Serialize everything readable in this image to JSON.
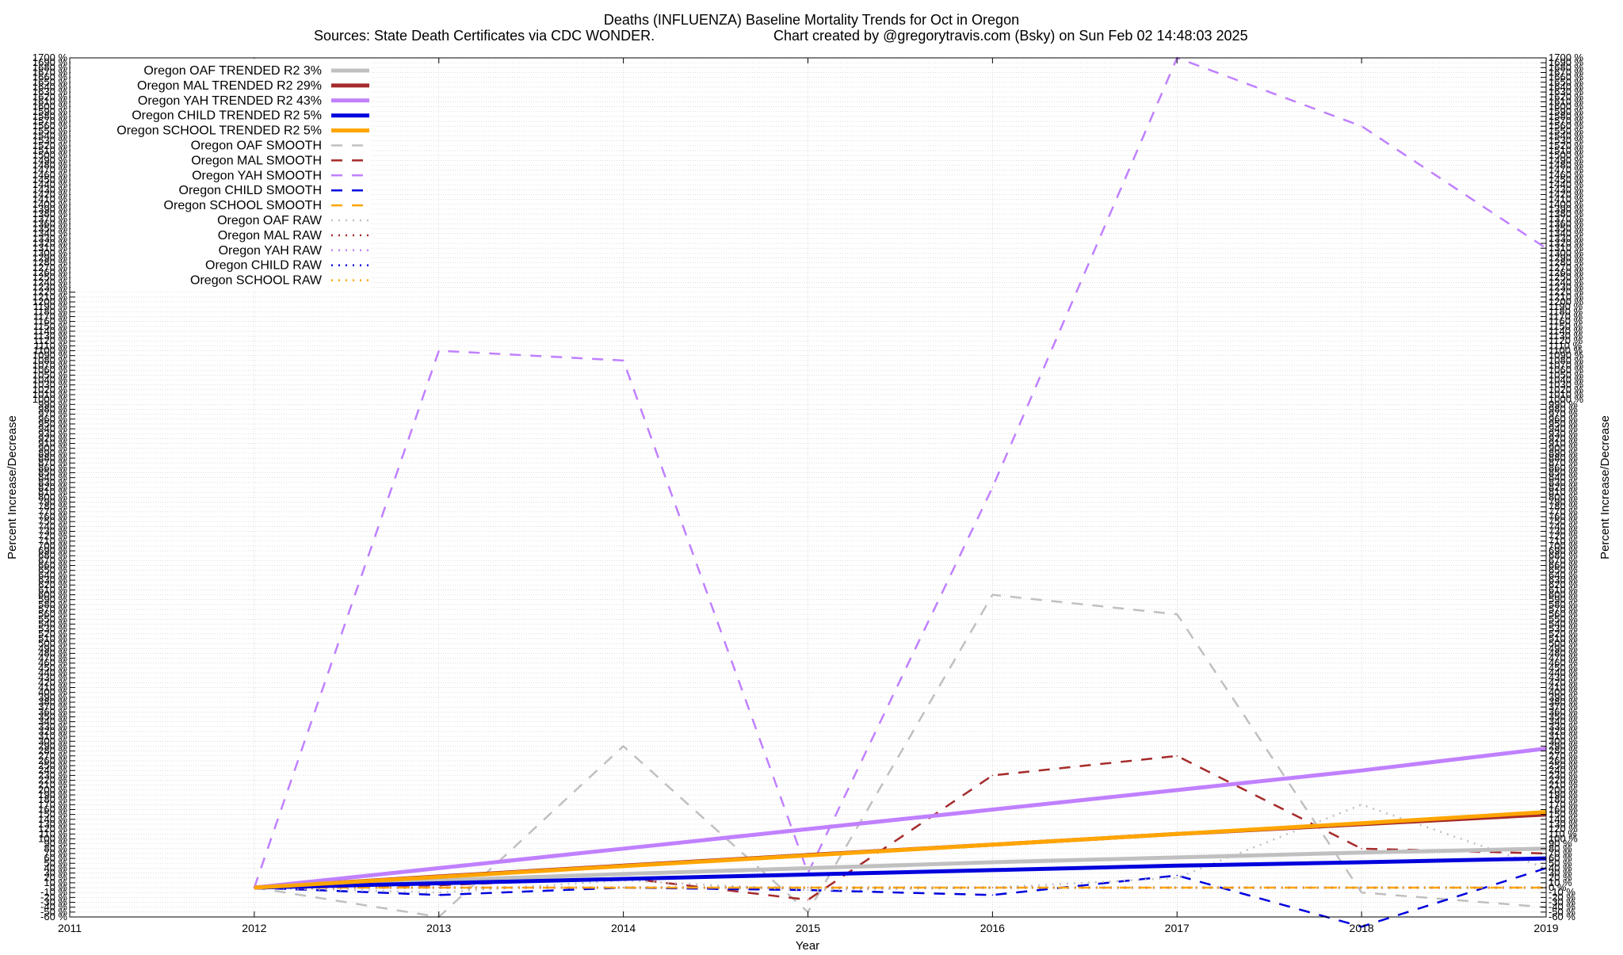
{
  "chart_data": {
    "type": "line",
    "title": "Deaths (INFLUENZA)  Baseline Mortality Trends for Oct in Oregon",
    "subtitle_left": "Sources: State Death Certificates via CDC WONDER.",
    "subtitle_right": "Chart created by @gregorytravis.com (Bsky) on Sun Feb 02 14:48:03 2025",
    "xlabel": "Year",
    "ylabel": "Percent Increase/Decrease",
    "xlim": [
      2011,
      2019
    ],
    "x_ticks": [
      "2011",
      "2012",
      "2013",
      "2014",
      "2015",
      "2016",
      "2017",
      "2018",
      "2019"
    ],
    "ylim": [
      -60,
      1700
    ],
    "y_tick_step": 10,
    "y_tick_suffix": " %",
    "grid": true,
    "legend_position": "top-left",
    "x": [
      2012,
      2013,
      2014,
      2015,
      2016,
      2017,
      2018,
      2019
    ],
    "series": [
      {
        "name": "Oregon OAF TRENDED R2  3%",
        "style": "trend",
        "color": "#c0c0c0",
        "values": [
          0,
          15,
          28,
          40,
          52,
          62,
          72,
          80
        ]
      },
      {
        "name": "Oregon MAL TRENDED R2  29%",
        "style": "trend",
        "color": "#a52a2a",
        "values": [
          0,
          23,
          45,
          67,
          88,
          110,
          130,
          150
        ]
      },
      {
        "name": "Oregon YAH TRENDED R2  43%",
        "style": "trend",
        "color": "#c080ff",
        "values": [
          0,
          40,
          80,
          120,
          160,
          200,
          240,
          285
        ]
      },
      {
        "name": "Oregon CHILD TRENDED R2  5%",
        "style": "trend",
        "color": "#0000dd",
        "values": [
          0,
          9,
          18,
          27,
          36,
          45,
          52,
          60
        ]
      },
      {
        "name": "Oregon SCHOOL TRENDED R2  5%",
        "style": "trend",
        "color": "#ffa500",
        "values": [
          0,
          22,
          44,
          66,
          88,
          110,
          132,
          155
        ]
      },
      {
        "name": "Oregon OAF SMOOTH",
        "style": "smooth",
        "color": "#c0c0c0",
        "values": [
          0,
          -60,
          290,
          -50,
          600,
          560,
          -10,
          -40
        ]
      },
      {
        "name": "Oregon MAL SMOOTH",
        "style": "smooth",
        "color": "#a52a2a",
        "values": [
          0,
          5,
          20,
          -25,
          230,
          270,
          80,
          70
        ]
      },
      {
        "name": "Oregon YAH SMOOTH",
        "style": "smooth",
        "color": "#c080ff",
        "values": [
          0,
          1100,
          1080,
          30,
          820,
          1700,
          1560,
          1310
        ]
      },
      {
        "name": "Oregon CHILD SMOOTH",
        "style": "smooth",
        "color": "#0000dd",
        "values": [
          0,
          -15,
          0,
          -5,
          -15,
          25,
          -80,
          40
        ]
      },
      {
        "name": "Oregon SCHOOL SMOOTH",
        "style": "smooth",
        "color": "#ffa500",
        "values": [
          0,
          0,
          0,
          0,
          0,
          0,
          0,
          0
        ]
      },
      {
        "name": "Oregon OAF RAW",
        "style": "raw",
        "color": "#c0c0c0",
        "values": [
          0,
          -10,
          15,
          -5,
          0,
          20,
          170,
          40
        ]
      },
      {
        "name": "Oregon MAL RAW",
        "style": "raw",
        "color": "#a52a2a",
        "values": [
          0,
          0,
          0,
          0,
          0,
          0,
          0,
          0
        ]
      },
      {
        "name": "Oregon YAH RAW",
        "style": "raw",
        "color": "#c080ff",
        "values": [
          0,
          0,
          0,
          0,
          0,
          0,
          0,
          0
        ]
      },
      {
        "name": "Oregon CHILD RAW",
        "style": "raw",
        "color": "#0000dd",
        "values": [
          0,
          0,
          0,
          0,
          0,
          0,
          0,
          0
        ]
      },
      {
        "name": "Oregon SCHOOL RAW",
        "style": "raw",
        "color": "#ffa500",
        "values": [
          0,
          0,
          0,
          0,
          0,
          0,
          0,
          0
        ]
      }
    ]
  }
}
